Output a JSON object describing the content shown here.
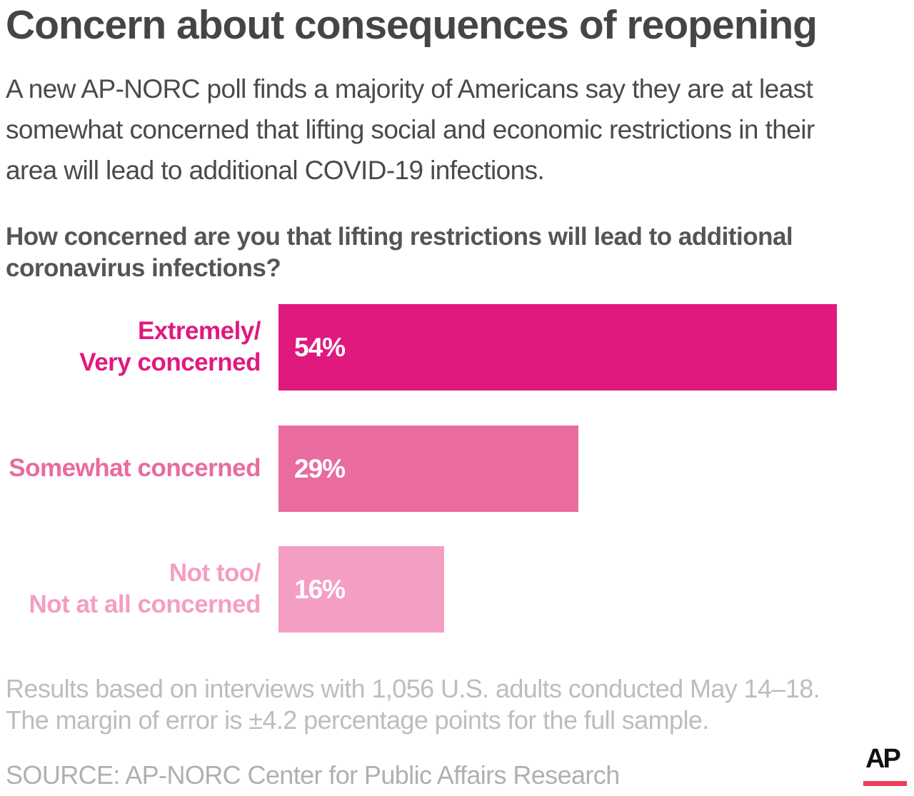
{
  "title": "Concern about consequences of reopening",
  "subtitle_lines": [
    "A new AP-NORC poll finds a majority of Americans say they are at least",
    "somewhat concerned that lifting social and economic restrictions in their",
    "area will lead to additional COVID-19 infections."
  ],
  "question_lines": [
    "How concerned are you that lifting restrictions will lead to additional",
    "coronavirus infections?"
  ],
  "chart_data": {
    "type": "bar",
    "orientation": "horizontal",
    "categories": [
      [
        "Extremely/",
        "Very concerned"
      ],
      [
        "Somewhat concerned"
      ],
      [
        "Not too/",
        "Not at all concerned"
      ]
    ],
    "values": [
      54,
      29,
      16
    ],
    "value_labels": [
      "54%",
      "29%",
      "16%"
    ],
    "unit": "%",
    "colors": [
      "#e0197f",
      "#e96b9f",
      "#f49ec4"
    ],
    "grid": false
  },
  "notes": [
    "Results based on interviews with 1,056 U.S. adults conducted May 14–18.",
    "The margin of error is ±4.2 percentage points for the full sample."
  ],
  "source": "SOURCE: AP-NORC Center for Public Affairs Research",
  "logo": "AP"
}
